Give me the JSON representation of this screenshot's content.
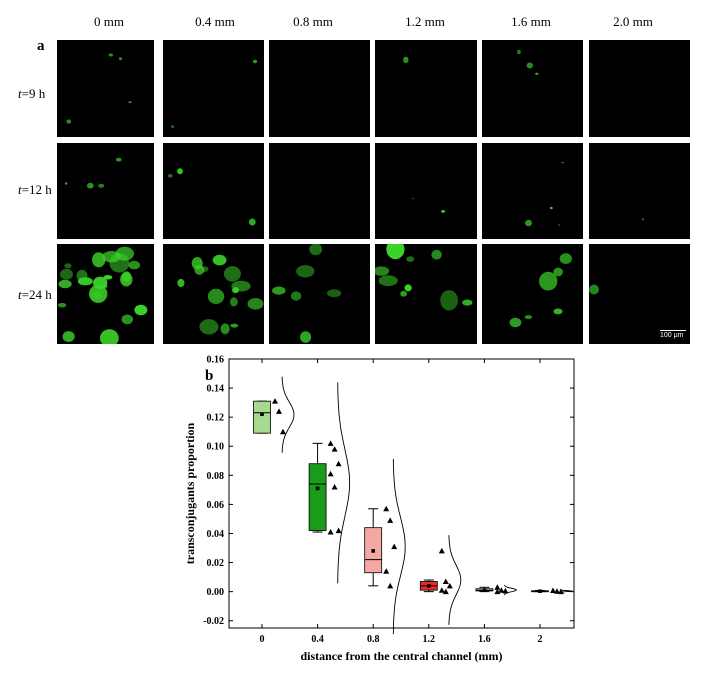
{
  "figure": {
    "panel_a_letter": "a",
    "panel_b_letter": "b",
    "column_headers": [
      "0 mm",
      "0.4 mm",
      "0.8 mm",
      "1.2 mm",
      "1.6 mm",
      "2.0 mm"
    ],
    "row_labels": [
      {
        "t": "t",
        "rest": "=9 h"
      },
      {
        "t": "t",
        "rest": "=12 h"
      },
      {
        "t": "t",
        "rest": "=24 h"
      }
    ],
    "scale_bar_label": "100 μm",
    "fluorescence_color": "#3bd32a"
  },
  "chart_data": {
    "type": "box",
    "xlabel": "distance from the central channel (mm)",
    "ylabel": "transconjugants proportion",
    "ylim": [
      -0.025,
      0.16
    ],
    "yticks": [
      -0.02,
      0.0,
      0.02,
      0.04,
      0.06,
      0.08,
      0.1,
      0.12,
      0.14,
      0.16
    ],
    "categories": [
      "0",
      "0.4",
      "0.8",
      "1.2",
      "1.6",
      "2"
    ],
    "grid": false,
    "boxes": [
      {
        "q1": 0.109,
        "median": 0.123,
        "q3": 0.131,
        "whisker_low": 0.109,
        "whisker_high": 0.131,
        "mean": 0.122,
        "points": [
          0.131,
          0.124,
          0.11
        ],
        "fill": "#a6da8f"
      },
      {
        "q1": 0.042,
        "median": 0.074,
        "q3": 0.088,
        "whisker_low": 0.041,
        "whisker_high": 0.102,
        "mean": 0.071,
        "points": [
          0.102,
          0.098,
          0.088,
          0.081,
          0.072,
          0.042,
          0.041
        ],
        "fill": "#1a9b1a"
      },
      {
        "q1": 0.013,
        "median": 0.022,
        "q3": 0.044,
        "whisker_low": 0.004,
        "whisker_high": 0.057,
        "mean": 0.028,
        "points": [
          0.057,
          0.049,
          0.031,
          0.014,
          0.004
        ],
        "fill": "#f4a8a3"
      },
      {
        "q1": 0.001,
        "median": 0.004,
        "q3": 0.007,
        "whisker_low": 0.0,
        "whisker_high": 0.008,
        "mean": 0.004,
        "points": [
          0.028,
          0.007,
          0.004,
          0.001,
          0.0
        ],
        "fill": "#e82a2a"
      },
      {
        "q1": 0.0005,
        "median": 0.001,
        "q3": 0.002,
        "whisker_low": 0.0,
        "whisker_high": 0.003,
        "mean": 0.001,
        "points": [
          0.003,
          0.001,
          0.0005,
          0.0
        ],
        "fill": "#d6c8a8"
      },
      {
        "q1": 0.0,
        "median": 0.0003,
        "q3": 0.0006,
        "whisker_low": 0.0,
        "whisker_high": 0.0008,
        "mean": 0.0003,
        "points": [
          0.0008,
          0.0003,
          0.0
        ],
        "fill": "#8aa2d6"
      }
    ]
  }
}
